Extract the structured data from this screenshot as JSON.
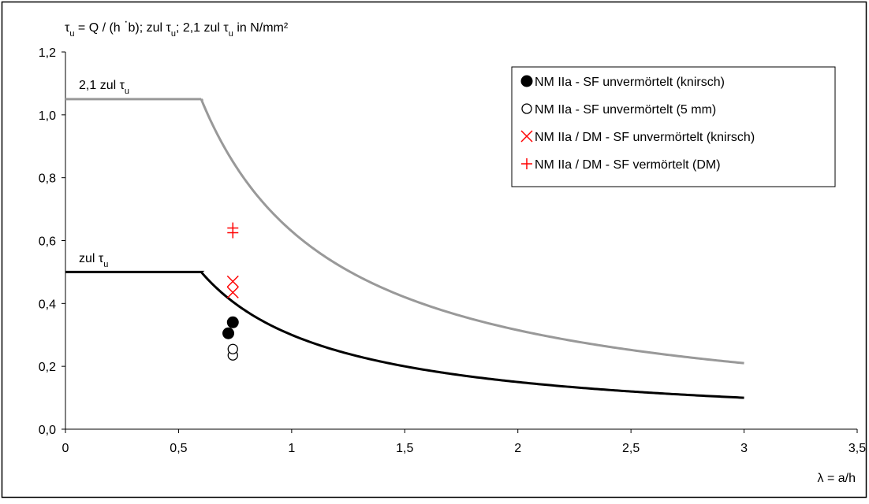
{
  "chart_data": {
    "type": "line",
    "title": "τu = Q / (h ·b); zul τu; 2,1 zul τu in N/mm²",
    "title_parts": {
      "tau": "τ",
      "sub": "u",
      "eq": " = Q / (h ",
      "dot": "·",
      "rest1": "b); zul ",
      "rest2": "; 2,1 zul ",
      "rest3": " in N/mm²"
    },
    "xlabel": "λ = a/h",
    "ylabel": "",
    "xlim": [
      0,
      3.5
    ],
    "ylim": [
      0,
      1.2
    ],
    "x_ticks": [
      0,
      0.5,
      1,
      1.5,
      2,
      2.5,
      3,
      3.5
    ],
    "x_tick_labels": [
      "0",
      "0,5",
      "1",
      "1,5",
      "2",
      "2,5",
      "3",
      "3,5"
    ],
    "y_ticks": [
      0,
      0.2,
      0.4,
      0.6,
      0.8,
      1.0,
      1.2
    ],
    "y_tick_labels": [
      "0,0",
      "0,2",
      "0,4",
      "0,6",
      "0,8",
      "1,0",
      "1,2"
    ],
    "grid": false,
    "legend_position": "top-right",
    "curve_labels": {
      "upper": {
        "text": "2,1 zul ",
        "tau": "τ",
        "sub": "u"
      },
      "lower": {
        "text": "zul ",
        "tau": "τ",
        "sub": "u"
      }
    },
    "lines": [
      {
        "label": "2,1 zul τu",
        "color": "#999999",
        "flat_value": 1.05,
        "flat_until": 0.6,
        "formula": "0.63 / λ",
        "x_end": 3.0
      },
      {
        "label": "zul τu",
        "color": "#000000",
        "flat_value": 0.5,
        "flat_until": 0.6,
        "formula": "0.3 / λ",
        "x_end": 3.0
      }
    ],
    "series": [
      {
        "name": "NM IIa - SF unvermörtelt (knirsch)",
        "marker": "filled-circle",
        "color": "#000000",
        "points": [
          [
            0.72,
            0.305
          ],
          [
            0.74,
            0.34
          ]
        ]
      },
      {
        "name": "NM IIa - SF unvermörtelt (5 mm)",
        "marker": "open-circle",
        "color": "#000000",
        "points": [
          [
            0.74,
            0.235
          ],
          [
            0.74,
            0.255
          ]
        ]
      },
      {
        "name": "NM IIa / DM - SF unvermörtelt (knirsch)",
        "marker": "x",
        "color": "#ff0000",
        "points": [
          [
            0.74,
            0.435
          ],
          [
            0.74,
            0.47
          ]
        ]
      },
      {
        "name": "NM IIa / DM - SF vermörtelt (DM)",
        "marker": "plus",
        "color": "#ff0000",
        "points": [
          [
            0.74,
            0.625
          ],
          [
            0.74,
            0.64
          ]
        ]
      }
    ]
  }
}
